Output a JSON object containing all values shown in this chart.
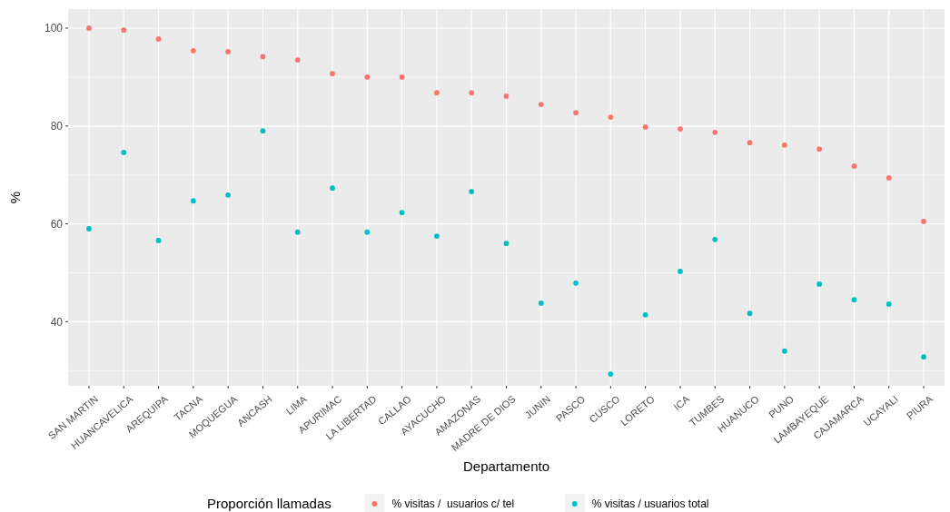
{
  "chart_data": {
    "type": "scatter",
    "xlabel": "Departamento",
    "ylabel": "%",
    "legend_title": "Proporción llamadas",
    "categories": [
      "SAN MARTIN",
      "HUANCAVELICA",
      "AREQUIPA",
      "TACNA",
      "MOQUEGUA",
      "ANCASH",
      "LIMA",
      "APURIMAC",
      "LA LIBERTAD",
      "CALLAO",
      "AYACUCHO",
      "AMAZONAS",
      "MADRE DE DIOS",
      "JUNIN",
      "PASCO",
      "CUSCO",
      "LORETO",
      "ICA",
      "TUMBES",
      "HUANUCO",
      "PUNO",
      "LAMBAYEQUE",
      "CAJAMARCA",
      "UCAYALI",
      "PIURA"
    ],
    "series": [
      {
        "name": "% visitas /  usuarios c/ tel",
        "color": "#f8766d",
        "values": [
          100,
          99.6,
          97.8,
          95.4,
          95.2,
          94.2,
          93.5,
          90.7,
          90,
          90,
          86.8,
          86.8,
          86.1,
          84.4,
          82.7,
          81.8,
          79.8,
          79.4,
          78.7,
          76.6,
          76.1,
          75.3,
          71.8,
          69.4,
          60.5
        ]
      },
      {
        "name": "% visitas / usuarios total",
        "color": "#00bfc4",
        "values": [
          59,
          74.6,
          56.6,
          64.7,
          65.9,
          79,
          58.3,
          67.3,
          58.3,
          62.3,
          57.5,
          66.6,
          56,
          43.8,
          47.9,
          29.3,
          41.4,
          50.3,
          56.8,
          41.7,
          34,
          47.7,
          44.5,
          43.6,
          32.8
        ]
      }
    ],
    "ylim": [
      26.9,
      103.9
    ],
    "yticks": [
      40,
      60,
      80,
      100
    ],
    "grid": true,
    "legend": "bottom",
    "marker": "circle"
  }
}
